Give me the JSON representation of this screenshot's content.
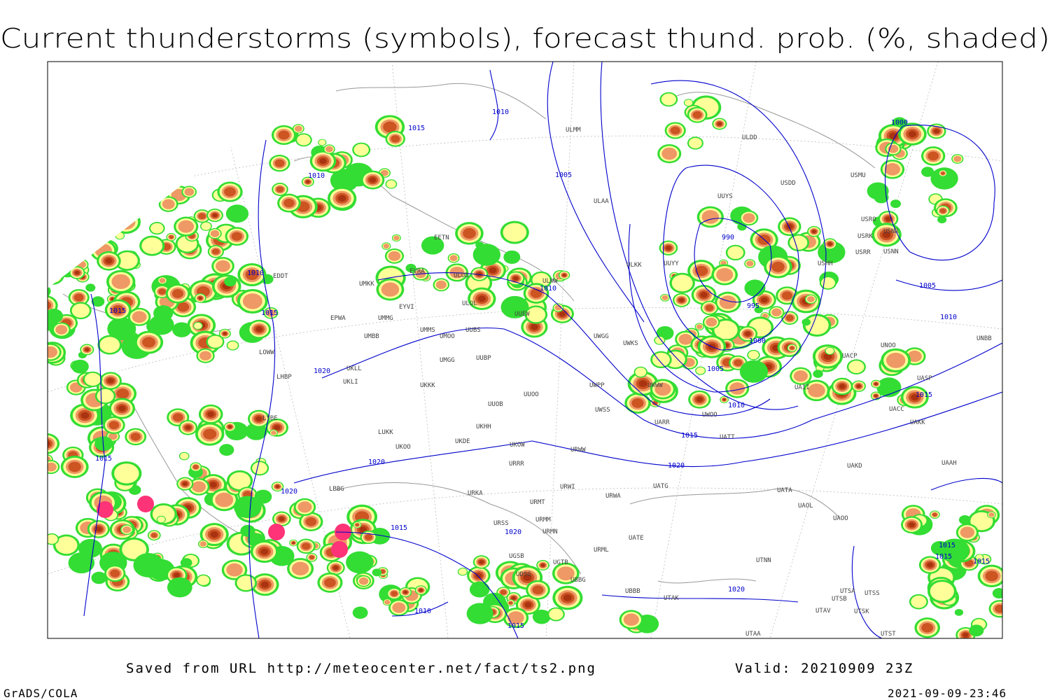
{
  "title": "Current thunderstorms (symbols), forecast thund. prob. (%, shaded)",
  "footer": {
    "source": "Saved from URL http://meteocenter.net/fact/ts2.png",
    "valid": "Valid: 20210909 23Z",
    "software": "GrADS/COLA",
    "timestamp": "2021-09-09-23:46"
  },
  "isobar_labels": [
    "1015",
    "1010",
    "1010",
    "1005",
    "1010",
    "1015",
    "1015",
    "1020",
    "1010",
    "990",
    "995",
    "1000",
    "1005",
    "1010",
    "1015",
    "1020",
    "1020",
    "1020",
    "1015",
    "1015",
    "1020",
    "1010",
    "1015",
    "1020",
    "1005",
    "1010",
    "1015",
    "1000",
    "1015",
    "1015",
    "1015"
  ],
  "stations": [
    "EDDT",
    "EPWA",
    "UMMG",
    "UMKK",
    "EYVI",
    "UMBB",
    "UMMS",
    "UMOO",
    "UUBS",
    "ULOL",
    "ULOD",
    "EVRA",
    "EETN",
    "UUEW",
    "ULWW",
    "ULAA",
    "ULMM",
    "ULDD",
    "USDD",
    "USMU",
    "USRO",
    "USRK",
    "USNR",
    "USRR",
    "USNN",
    "USHH",
    "UUYY",
    "ULKK",
    "UUYS",
    "UWGG",
    "UWKS",
    "UWPP",
    "UWSS",
    "URWW",
    "UKOW",
    "UKDE",
    "UKHH",
    "UKKK",
    "UUOO",
    "UUOB",
    "UMGG",
    "UUBP",
    "UKLL",
    "UKLI",
    "LHBP",
    "LOWW",
    "LYBE",
    "LUKK",
    "UKOO",
    "URRR",
    "URWI",
    "URKA",
    "URMT",
    "URMM",
    "URMN",
    "URSS",
    "UGSB",
    "UGTB",
    "UDSG",
    "UBBG",
    "UBBB",
    "UTAK",
    "URML",
    "UATE",
    "UATA",
    "UATG",
    "URWA",
    "UAOL",
    "UAOO",
    "UAKD",
    "UAAH",
    "UAKK",
    "UASP",
    "UACC",
    "UNOO",
    "UNBB",
    "UACP",
    "UAII",
    "UWOO",
    "UARR",
    "UWWW",
    "UATT",
    "UTNN",
    "UTSA",
    "UTSS",
    "UTSB",
    "UTAV",
    "UTSK",
    "UTST",
    "UTAA",
    "LBBG"
  ]
}
